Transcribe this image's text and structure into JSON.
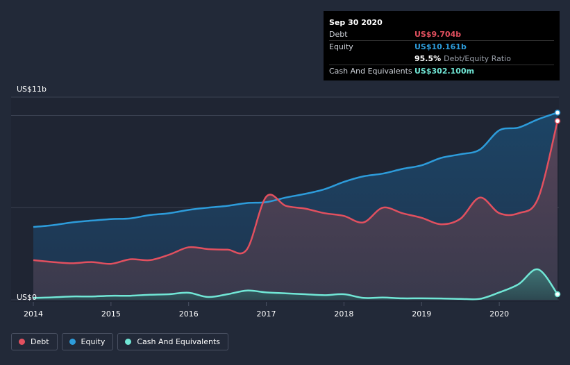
{
  "tooltip": {
    "date": "Sep 30 2020",
    "rows": [
      {
        "label": "Debt",
        "value": "US$9.704b",
        "color": "#e2505f"
      },
      {
        "label": "Equity",
        "value": "US$10.161b",
        "color": "#2d9cdb"
      },
      {
        "label": "",
        "value": "95.5%",
        "sub": "Debt/Equity Ratio",
        "color": "#ffffff"
      },
      {
        "label": "Cash And Equivalents",
        "value": "US$302.100m",
        "color": "#71e7d6"
      }
    ]
  },
  "legend": [
    {
      "label": "Debt",
      "color": "#e2505f"
    },
    {
      "label": "Equity",
      "color": "#2d9cdb"
    },
    {
      "label": "Cash And Equivalents",
      "color": "#71e7d6"
    }
  ],
  "chart_data": {
    "type": "area",
    "title": "",
    "xlabel": "",
    "ylabel": "",
    "y_top_label": "US$11b",
    "y_bottom_label": "US$0",
    "ylim": [
      0,
      11
    ],
    "xlim": [
      2014.0,
      2020.75
    ],
    "x_ticks": [
      2014,
      2015,
      2016,
      2017,
      2018,
      2019,
      2020
    ],
    "x_tick_labels": [
      "2014",
      "2015",
      "2016",
      "2017",
      "2018",
      "2019",
      "2020"
    ],
    "series": [
      {
        "name": "Equity",
        "color": "#2d9cdb",
        "points": [
          [
            2014.0,
            3.95
          ],
          [
            2014.25,
            4.05
          ],
          [
            2014.5,
            4.2
          ],
          [
            2014.75,
            4.3
          ],
          [
            2015.0,
            4.38
          ],
          [
            2015.25,
            4.42
          ],
          [
            2015.5,
            4.6
          ],
          [
            2015.75,
            4.7
          ],
          [
            2016.0,
            4.88
          ],
          [
            2016.25,
            5.0
          ],
          [
            2016.5,
            5.1
          ],
          [
            2016.75,
            5.25
          ],
          [
            2017.0,
            5.3
          ],
          [
            2017.25,
            5.55
          ],
          [
            2017.5,
            5.75
          ],
          [
            2017.75,
            6.0
          ],
          [
            2018.0,
            6.4
          ],
          [
            2018.25,
            6.7
          ],
          [
            2018.5,
            6.85
          ],
          [
            2018.75,
            7.1
          ],
          [
            2019.0,
            7.3
          ],
          [
            2019.25,
            7.7
          ],
          [
            2019.5,
            7.9
          ],
          [
            2019.75,
            8.15
          ],
          [
            2020.0,
            9.2
          ],
          [
            2020.25,
            9.35
          ],
          [
            2020.5,
            9.8
          ],
          [
            2020.75,
            10.161
          ]
        ]
      },
      {
        "name": "Debt",
        "color": "#e2505f",
        "points": [
          [
            2014.0,
            2.15
          ],
          [
            2014.25,
            2.05
          ],
          [
            2014.5,
            1.98
          ],
          [
            2014.75,
            2.05
          ],
          [
            2015.0,
            1.95
          ],
          [
            2015.25,
            2.2
          ],
          [
            2015.5,
            2.15
          ],
          [
            2015.75,
            2.45
          ],
          [
            2016.0,
            2.85
          ],
          [
            2016.25,
            2.75
          ],
          [
            2016.5,
            2.72
          ],
          [
            2016.75,
            2.73
          ],
          [
            2017.0,
            5.6
          ],
          [
            2017.25,
            5.1
          ],
          [
            2017.5,
            4.95
          ],
          [
            2017.75,
            4.7
          ],
          [
            2018.0,
            4.55
          ],
          [
            2018.25,
            4.2
          ],
          [
            2018.5,
            5.0
          ],
          [
            2018.75,
            4.7
          ],
          [
            2019.0,
            4.45
          ],
          [
            2019.25,
            4.1
          ],
          [
            2019.5,
            4.4
          ],
          [
            2019.75,
            5.55
          ],
          [
            2020.0,
            4.7
          ],
          [
            2020.25,
            4.7
          ],
          [
            2020.5,
            5.5
          ],
          [
            2020.75,
            9.704
          ]
        ]
      },
      {
        "name": "Cash And Equivalents",
        "color": "#71e7d6",
        "points": [
          [
            2014.0,
            0.1
          ],
          [
            2014.25,
            0.13
          ],
          [
            2014.5,
            0.18
          ],
          [
            2014.75,
            0.18
          ],
          [
            2015.0,
            0.22
          ],
          [
            2015.25,
            0.22
          ],
          [
            2015.5,
            0.27
          ],
          [
            2015.75,
            0.3
          ],
          [
            2016.0,
            0.38
          ],
          [
            2016.25,
            0.15
          ],
          [
            2016.5,
            0.3
          ],
          [
            2016.75,
            0.5
          ],
          [
            2017.0,
            0.4
          ],
          [
            2017.25,
            0.35
          ],
          [
            2017.5,
            0.3
          ],
          [
            2017.75,
            0.25
          ],
          [
            2018.0,
            0.3
          ],
          [
            2018.25,
            0.1
          ],
          [
            2018.5,
            0.12
          ],
          [
            2018.75,
            0.08
          ],
          [
            2019.0,
            0.08
          ],
          [
            2019.25,
            0.07
          ],
          [
            2019.5,
            0.05
          ],
          [
            2019.75,
            0.05
          ],
          [
            2020.0,
            0.4
          ],
          [
            2020.25,
            0.85
          ],
          [
            2020.5,
            1.65
          ],
          [
            2020.75,
            0.302
          ]
        ]
      }
    ]
  }
}
